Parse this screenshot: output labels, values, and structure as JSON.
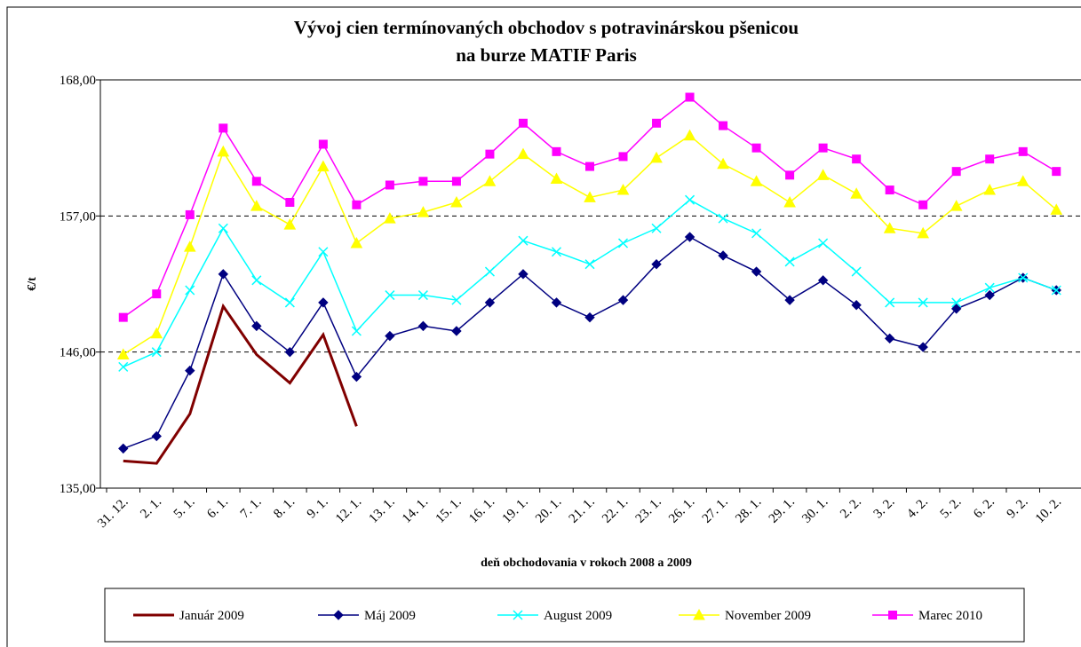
{
  "chart_data": {
    "type": "line",
    "title": [
      "Vývoj cien termínovaných obchodov s potravinárskou pšenicou",
      "na burze  MATIF Paris"
    ],
    "y_label": "€/t",
    "x_label": "deň obchodovania v rokoch 2008 a 2009",
    "categories": [
      "31. 12.",
      "2. 1.",
      "5. 1.",
      "6. 1.",
      "7. 1.",
      "8. 1.",
      "9. 1.",
      "12. 1.",
      "13. 1.",
      "14. 1.",
      "15. 1.",
      "16. 1.",
      "19. 1.",
      "20. 1.",
      "21. 1.",
      "22. 1.",
      "23. 1.",
      "26. 1.",
      "27. 1.",
      "28. 1.",
      "29. 1.",
      "30. 1.",
      "2. 2.",
      "3. 2.",
      "4. 2.",
      "5. 2.",
      "6. 2.",
      "9. 2.",
      "10. 2."
    ],
    "ylim": [
      135,
      168
    ],
    "yticks": [
      {
        "value": 135,
        "label": "135,00"
      },
      {
        "value": 146,
        "label": "146,00"
      },
      {
        "value": 157,
        "label": "157,00"
      },
      {
        "value": 168,
        "label": "168,00"
      }
    ],
    "grid": true,
    "legend": "bottom",
    "series": [
      {
        "name": "Január 2009",
        "color": "#800000",
        "marker": "none",
        "values": [
          137.2,
          137.0,
          141.0,
          149.7,
          145.8,
          143.5,
          147.4,
          140.0,
          null,
          null,
          null,
          null,
          null,
          null,
          null,
          null,
          null,
          null,
          null,
          null,
          null,
          null,
          null,
          null,
          null,
          null,
          null,
          null,
          null
        ]
      },
      {
        "name": "Máj 2009",
        "color": "#000080",
        "marker": "diamond",
        "values": [
          138.2,
          139.2,
          144.5,
          152.3,
          148.1,
          146.0,
          150.0,
          144.0,
          147.3,
          148.1,
          147.7,
          150.0,
          152.3,
          150.0,
          148.8,
          150.2,
          153.1,
          155.3,
          153.8,
          152.5,
          150.2,
          151.8,
          149.8,
          147.1,
          146.4,
          149.5,
          150.6,
          152.0,
          151.0
        ]
      },
      {
        "name": "August 2009",
        "color": "#00ffff",
        "marker": "x",
        "values": [
          144.8,
          146.0,
          151.0,
          156.0,
          151.8,
          150.0,
          154.1,
          147.7,
          150.6,
          150.6,
          150.2,
          152.5,
          155.0,
          154.1,
          153.1,
          154.8,
          156.0,
          158.3,
          156.8,
          155.6,
          153.3,
          154.8,
          152.5,
          150.0,
          150.0,
          150.0,
          151.2,
          152.0,
          151.0
        ]
      },
      {
        "name": "November 2009",
        "color": "#ffff00",
        "marker": "triangle",
        "values": [
          145.8,
          147.5,
          154.5,
          162.2,
          157.8,
          156.3,
          161.0,
          154.8,
          156.8,
          157.3,
          158.1,
          159.8,
          162.0,
          160.0,
          158.5,
          159.1,
          161.7,
          163.5,
          161.2,
          159.8,
          158.1,
          160.3,
          158.8,
          156.0,
          155.6,
          157.8,
          159.1,
          159.8,
          157.5
        ]
      },
      {
        "name": "Marec 2010",
        "color": "#ff00ff",
        "marker": "square",
        "values": [
          148.8,
          150.7,
          157.1,
          164.1,
          159.8,
          158.1,
          162.8,
          157.9,
          159.5,
          159.8,
          159.8,
          162.0,
          164.5,
          162.2,
          161.0,
          161.8,
          164.5,
          166.6,
          164.3,
          162.5,
          160.3,
          162.5,
          161.6,
          159.1,
          157.9,
          160.6,
          161.6,
          162.2,
          160.6
        ]
      }
    ]
  }
}
